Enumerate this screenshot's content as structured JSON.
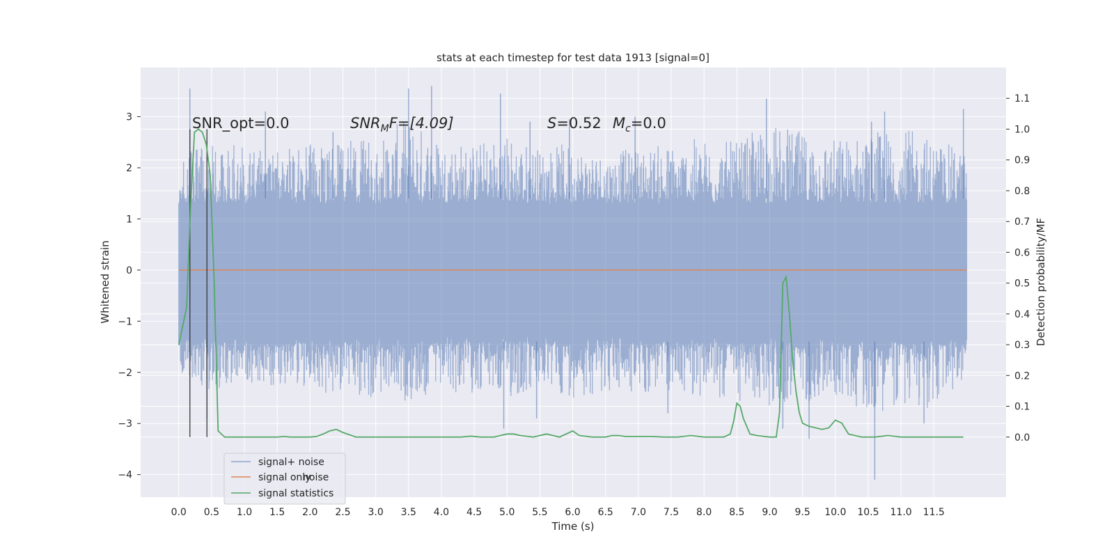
{
  "chart_data": {
    "type": "line",
    "title": "stats at each timestep for test data 1913 [signal=0]",
    "xlabel": "Time (s)",
    "ylabel": "Whitened strain",
    "y2label": "Detection probability/MF",
    "xlim": [
      -0.58,
      12.6
    ],
    "ylim": [
      -4.44,
      3.96
    ],
    "y2lim": [
      -0.195,
      1.2
    ],
    "x_ticks": [
      "0.0",
      "0.5",
      "1.0",
      "1.5",
      "2.0",
      "2.5",
      "3.0",
      "3.5",
      "4.0",
      "4.5",
      "5.0",
      "5.5",
      "6.0",
      "6.5",
      "7.0",
      "7.5",
      "8.0",
      "8.5",
      "9.0",
      "9.5",
      "10.0",
      "10.5",
      "11.0",
      "11.5"
    ],
    "y_ticks": [
      "−4",
      "−3",
      "−2",
      "−1",
      "0",
      "1",
      "2",
      "3"
    ],
    "y2_ticks": [
      "0.0",
      "0.1",
      "0.2",
      "0.3",
      "0.4",
      "0.5",
      "0.6",
      "0.7",
      "0.8",
      "0.9",
      "1.0",
      "1.1"
    ],
    "grid": true,
    "legend_placement": "lower-left",
    "legend": [
      "signal+ noise",
      "signal only",
      "signal statistics"
    ],
    "legend_ghost_text": "noise",
    "colors": {
      "plot_bg": "#eaeaf2",
      "grid": "#ffffff",
      "noise": "#4c72b0",
      "signal": "#dd8452",
      "stats": "#55a868",
      "vline": "#333333"
    },
    "annotations": {
      "snr_opt": "SNR_opt=0.0",
      "snr_mf_main": "SNR",
      "snr_mf_sub": "M",
      "snr_mf_rest": "F=[4.09]",
      "s_label": "S",
      "s_value": "=0.52",
      "mc_main": "M",
      "mc_sub": "c",
      "mc_value": "=0.0"
    },
    "vertical_lines_x": [
      0.17,
      0.43
    ],
    "noise_envelope": {
      "x": [
        0.0,
        0.5,
        1.0,
        1.5,
        2.0,
        2.5,
        3.0,
        3.5,
        4.0,
        4.5,
        5.0,
        5.5,
        6.0,
        6.5,
        7.0,
        7.5,
        8.0,
        8.5,
        9.0,
        9.5,
        10.0,
        10.5,
        11.0,
        11.5,
        12.0
      ],
      "upper": [
        2.2,
        2.6,
        2.4,
        2.3,
        2.5,
        2.5,
        2.6,
        3.0,
        2.6,
        2.5,
        2.7,
        2.4,
        2.5,
        2.3,
        2.4,
        2.5,
        2.6,
        2.5,
        2.9,
        2.7,
        2.6,
        2.7,
        2.8,
        2.6,
        2.3
      ],
      "lower": [
        -2.0,
        -2.4,
        -2.2,
        -2.3,
        -2.4,
        -2.4,
        -2.5,
        -2.6,
        -2.5,
        -2.4,
        -2.6,
        -2.4,
        -2.5,
        -2.4,
        -2.5,
        -2.4,
        -2.5,
        -2.6,
        -2.7,
        -2.6,
        -2.5,
        -2.8,
        -2.7,
        -2.8,
        -2.1
      ]
    },
    "noise_spikes": [
      [
        0.17,
        3.55
      ],
      [
        0.43,
        -2.9
      ],
      [
        1.32,
        3.1
      ],
      [
        2.35,
        2.7
      ],
      [
        3.5,
        3.55
      ],
      [
        3.85,
        3.6
      ],
      [
        4.9,
        3.45
      ],
      [
        4.95,
        -3.1
      ],
      [
        5.35,
        2.9
      ],
      [
        5.45,
        -2.9
      ],
      [
        5.95,
        2.95
      ],
      [
        6.95,
        3.0
      ],
      [
        7.45,
        -2.8
      ],
      [
        8.95,
        3.35
      ],
      [
        9.2,
        -3.1
      ],
      [
        9.6,
        -3.3
      ],
      [
        10.55,
        2.9
      ],
      [
        10.6,
        -4.1
      ],
      [
        10.75,
        3.1
      ],
      [
        11.35,
        -3.0
      ],
      [
        11.95,
        3.15
      ]
    ],
    "series": [
      {
        "name": "signal only",
        "x": [
          0.0,
          12.0
        ],
        "y": [
          0.0,
          0.0
        ]
      },
      {
        "name": "signal statistics",
        "axis": "right",
        "x": [
          0.0,
          0.12,
          0.18,
          0.24,
          0.3,
          0.36,
          0.42,
          0.48,
          0.54,
          0.6,
          0.7,
          0.85,
          1.0,
          1.5,
          1.6,
          1.7,
          2.0,
          2.1,
          2.2,
          2.3,
          2.4,
          2.5,
          2.7,
          3.0,
          3.5,
          4.0,
          4.3,
          4.45,
          4.6,
          4.8,
          4.9,
          5.0,
          5.1,
          5.2,
          5.4,
          5.5,
          5.6,
          5.7,
          5.8,
          5.9,
          6.0,
          6.1,
          6.3,
          6.5,
          6.6,
          6.7,
          6.8,
          7.0,
          7.2,
          7.4,
          7.6,
          7.8,
          8.0,
          8.3,
          8.4,
          8.45,
          8.5,
          8.55,
          8.6,
          8.7,
          8.8,
          9.0,
          9.1,
          9.15,
          9.2,
          9.25,
          9.3,
          9.35,
          9.4,
          9.45,
          9.5,
          9.6,
          9.8,
          9.9,
          10.0,
          10.1,
          10.2,
          10.4,
          10.6,
          10.8,
          11.0,
          11.5,
          11.95
        ],
        "y": [
          0.3,
          0.42,
          0.75,
          0.99,
          1.0,
          0.99,
          0.95,
          0.85,
          0.5,
          0.02,
          0.0,
          0.0,
          0.0,
          0.0,
          0.002,
          0.0,
          0.0,
          0.002,
          0.01,
          0.02,
          0.025,
          0.015,
          0.0,
          0.0,
          0.0,
          0.0,
          0.0,
          0.003,
          0.0,
          0.0,
          0.005,
          0.01,
          0.01,
          0.005,
          0.0,
          0.005,
          0.01,
          0.005,
          0.0,
          0.01,
          0.02,
          0.005,
          0.0,
          0.0,
          0.005,
          0.005,
          0.002,
          0.002,
          0.002,
          0.0,
          0.0,
          0.005,
          0.0,
          0.0,
          0.01,
          0.05,
          0.11,
          0.1,
          0.06,
          0.01,
          0.005,
          0.0,
          0.0,
          0.08,
          0.5,
          0.52,
          0.4,
          0.25,
          0.15,
          0.08,
          0.045,
          0.035,
          0.025,
          0.03,
          0.055,
          0.045,
          0.01,
          0.0,
          0.0,
          0.005,
          0.0,
          0.0,
          0.0
        ]
      }
    ]
  }
}
